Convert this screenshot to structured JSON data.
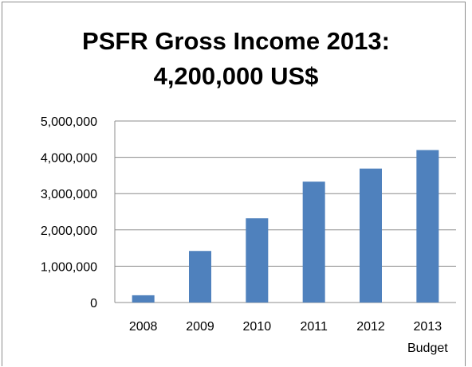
{
  "chart_data": {
    "type": "bar",
    "title_lines": [
      "PSFR Gross Income 2013:",
      "4,200,000 US$"
    ],
    "categories": [
      {
        "line1": "2008",
        "line2": ""
      },
      {
        "line1": "2009",
        "line2": ""
      },
      {
        "line1": "2010",
        "line2": ""
      },
      {
        "line1": "2011",
        "line2": ""
      },
      {
        "line1": "2012",
        "line2": ""
      },
      {
        "line1": "2013",
        "line2": "Budget"
      }
    ],
    "values": [
      200000,
      1420000,
      2320000,
      3330000,
      3690000,
      4200000
    ],
    "y_ticks": [
      "0",
      "1,000,000",
      "2,000,000",
      "3,000,000",
      "4,000,000",
      "5,000,000"
    ],
    "ylim": [
      0,
      5000000
    ],
    "grid": true,
    "legend": "none",
    "colors": {
      "bar": "#4f81bd",
      "grid": "#8c8c8c"
    }
  }
}
